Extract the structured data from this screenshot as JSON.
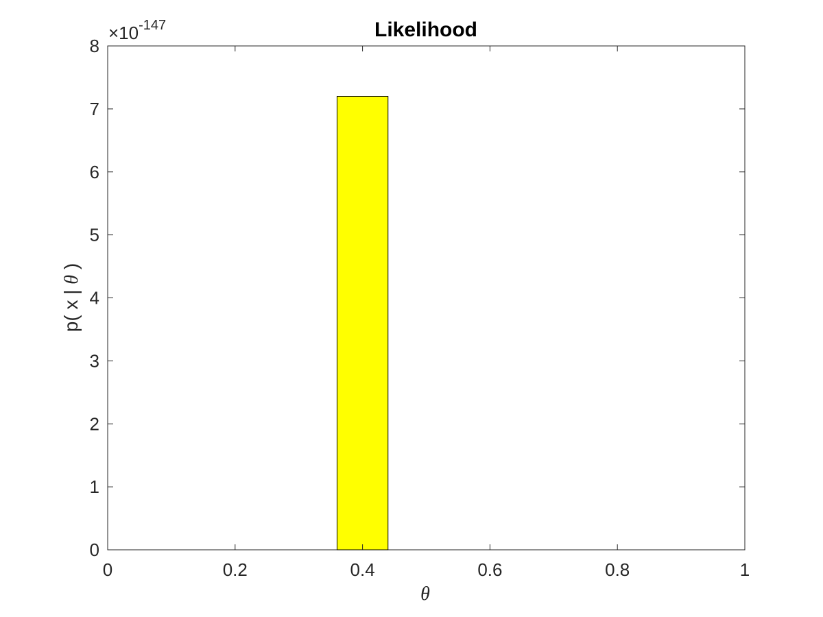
{
  "chart_data": {
    "type": "bar",
    "title": "Likelihood",
    "xlabel": "θ",
    "ylabel_prefix": "p( x | ",
    "ylabel_symbol": "θ",
    "ylabel_suffix": " )",
    "y_multiplier_base": "×10",
    "y_multiplier_exponent": "-147",
    "xlim": [
      0,
      1
    ],
    "ylim": [
      0,
      8
    ],
    "x_ticks": [
      "0",
      "0.2",
      "0.4",
      "0.6",
      "0.8",
      "1"
    ],
    "x_tick_values": [
      0,
      0.2,
      0.4,
      0.6,
      0.8,
      1
    ],
    "y_ticks": [
      "0",
      "1",
      "2",
      "3",
      "4",
      "5",
      "6",
      "7",
      "8"
    ],
    "y_tick_values": [
      0,
      1,
      2,
      3,
      4,
      5,
      6,
      7,
      8
    ],
    "bars": [
      {
        "x_start": 0.36,
        "x_end": 0.44,
        "value": 7.2
      }
    ],
    "bar_color": "#ffff00",
    "bar_edge_color": "#000000",
    "grid": false,
    "box": true
  }
}
